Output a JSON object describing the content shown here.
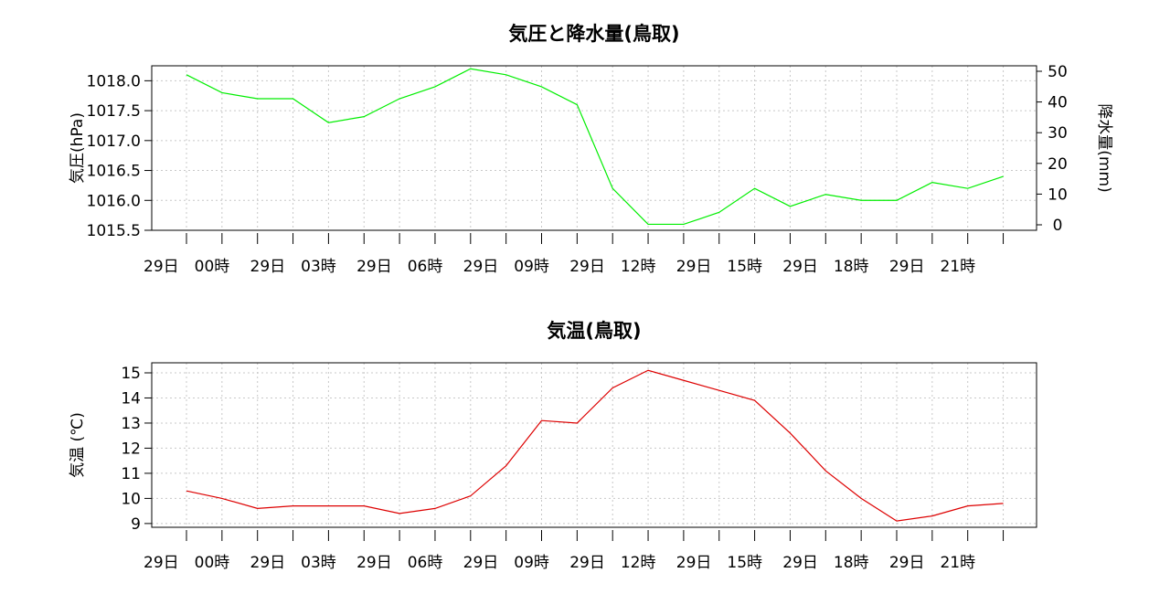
{
  "x_tick_labels": [
    "29日　00時",
    "29日　03時",
    "29日　06時",
    "29日　09時",
    "29日　12時",
    "29日　15時",
    "29日　18時",
    "29日　21時"
  ],
  "chart_data": [
    {
      "type": "line",
      "title": "気圧と降水量(鳥取)",
      "ylabel": "気圧(hPa)",
      "y2label": "降水量(mm)",
      "ylim": [
        1015.5,
        1018.25
      ],
      "y2lim": [
        0,
        50
      ],
      "yticks": [
        "1015.5",
        "1016.0",
        "1016.5",
        "1017.0",
        "1017.5",
        "1018.0"
      ],
      "y2ticks": [
        "0",
        "10",
        "20",
        "30",
        "40",
        "50"
      ],
      "grid": true,
      "x": [
        "29日00時",
        "29日01時",
        "29日02時",
        "29日03時",
        "29日04時",
        "29日05時",
        "29日06時",
        "29日07時",
        "29日08時",
        "29日09時",
        "29日10時",
        "29日11時",
        "29日12時",
        "29日13時",
        "29日14時",
        "29日15時",
        "29日16時",
        "29日17時",
        "29日18時",
        "29日19時",
        "29日20時",
        "29日21時",
        "29日22時",
        "29日23時"
      ],
      "series": [
        {
          "color": "#00ee00",
          "values": [
            1018.1,
            1017.8,
            1017.7,
            1017.7,
            1017.3,
            1017.4,
            1017.7,
            1017.9,
            1018.2,
            1018.1,
            1017.9,
            1017.6,
            1016.2,
            1015.6,
            1015.6,
            1015.8,
            1016.2,
            1015.9,
            1016.1,
            1016.0,
            1016.0,
            1016.3,
            1016.2,
            1016.4
          ]
        }
      ]
    },
    {
      "type": "line",
      "title": "気温(鳥取)",
      "ylabel": "気温 (℃)",
      "ylim": [
        8.85,
        15.4
      ],
      "yticks": [
        "9",
        "10",
        "11",
        "12",
        "13",
        "14",
        "15"
      ],
      "grid": true,
      "x": [
        "29日00時",
        "29日01時",
        "29日02時",
        "29日03時",
        "29日04時",
        "29日05時",
        "29日06時",
        "29日07時",
        "29日08時",
        "29日09時",
        "29日10時",
        "29日11時",
        "29日12時",
        "29日13時",
        "29日14時",
        "29日15時",
        "29日16時",
        "29日17時",
        "29日18時",
        "29日19時",
        "29日20時",
        "29日21時",
        "29日22時",
        "29日23時"
      ],
      "series": [
        {
          "color": "#dd0000",
          "values": [
            10.3,
            10.0,
            9.6,
            9.7,
            9.7,
            9.7,
            9.4,
            9.6,
            10.1,
            11.3,
            13.1,
            13.0,
            14.4,
            15.1,
            14.7,
            14.3,
            13.9,
            12.6,
            11.1,
            10.0,
            9.1,
            9.3,
            9.7,
            9.8
          ]
        }
      ]
    }
  ]
}
